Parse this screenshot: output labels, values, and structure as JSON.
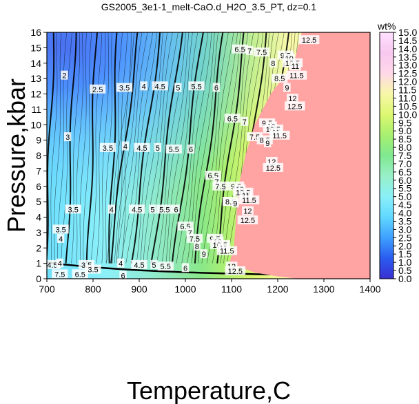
{
  "chart_data": {
    "type": "heatmap",
    "title": "GS2005_3e1-1_melt-CaO.d_H2O_3.5_PT, dz=0.1",
    "xlabel": "Temperature,C",
    "ylabel": "Pressure,kbar",
    "xlim": [
      700,
      1400
    ],
    "ylim": [
      0,
      16
    ],
    "x_ticks": [
      "700",
      "800",
      "900",
      "1000",
      "1100",
      "1200",
      "1300",
      "1400"
    ],
    "y_ticks": [
      "0",
      "1",
      "2",
      "3",
      "4",
      "5",
      "6",
      "7",
      "8",
      "9",
      "10",
      "11",
      "12",
      "13",
      "14",
      "15",
      "16"
    ],
    "colorbar": {
      "label": "wt%",
      "range": [
        0.0,
        15.0
      ],
      "ticks": [
        "0.0",
        "0.5",
        "1.0",
        "1.5",
        "2.0",
        "2.5",
        "3.0",
        "3.5",
        "4.0",
        "4.5",
        "5.0",
        "5.5",
        "6.0",
        "6.5",
        "7.0",
        "7.5",
        "8.0",
        "8.5",
        "9.0",
        "9.5",
        "10.0",
        "10.5",
        "11.0",
        "11.5",
        "12.0",
        "12.5",
        "13.0",
        "13.5",
        "14.0",
        "14.5",
        "15.0"
      ],
      "colors": [
        "#3a2fd0",
        "#2a5cf0",
        "#3fa0ff",
        "#60d8ff",
        "#8af0f8",
        "#98f0c8",
        "#80e890",
        "#a8f070",
        "#dcf870",
        "#f8f8a8",
        "#ffd8e8",
        "#f8c8f0",
        "#ffe0ff"
      ]
    },
    "subsolidus_region": {
      "color": "#ffa3a3",
      "boundary": [
        [
          1252,
          16
        ],
        [
          1235,
          14
        ],
        [
          1185,
          12
        ],
        [
          1150,
          10
        ],
        [
          1130,
          8
        ],
        [
          1115,
          6
        ],
        [
          1110,
          4
        ],
        [
          1105,
          2
        ],
        [
          1095,
          1
        ],
        [
          1150,
          0.4
        ],
        [
          1200,
          0.15
        ],
        [
          1245,
          0
        ],
        [
          1400,
          0
        ],
        [
          1400,
          16
        ]
      ]
    },
    "contour_labels": [
      {
        "text": "2",
        "t": 738,
        "p": 13.2
      },
      {
        "text": "2.5",
        "t": 810,
        "p": 12.3
      },
      {
        "text": "3",
        "t": 745,
        "p": 9.2
      },
      {
        "text": "3.5",
        "t": 868,
        "p": 12.4
      },
      {
        "text": "3.5",
        "t": 832,
        "p": 8.5
      },
      {
        "text": "3.5",
        "t": 757,
        "p": 4.5
      },
      {
        "text": "3.5",
        "t": 730,
        "p": 3.2
      },
      {
        "text": "3.5",
        "t": 786,
        "p": 0.9
      },
      {
        "text": "4",
        "t": 910,
        "p": 12.5
      },
      {
        "text": "4",
        "t": 870,
        "p": 8.6
      },
      {
        "text": "4",
        "t": 840,
        "p": 4.5
      },
      {
        "text": "4",
        "t": 730,
        "p": 2.6
      },
      {
        "text": "4",
        "t": 860,
        "p": 1.0
      },
      {
        "text": "4.5",
        "t": 945,
        "p": 12.5
      },
      {
        "text": "4.5",
        "t": 906,
        "p": 8.5
      },
      {
        "text": "4.5",
        "t": 895,
        "p": 4.5
      },
      {
        "text": "4.5",
        "t": 900,
        "p": 0.9
      },
      {
        "text": "5",
        "t": 984,
        "p": 12.4
      },
      {
        "text": "5",
        "t": 940,
        "p": 8.5
      },
      {
        "text": "5",
        "t": 929,
        "p": 4.5
      },
      {
        "text": "5",
        "t": 932,
        "p": 0.9
      },
      {
        "text": "5.5",
        "t": 1024,
        "p": 12.5
      },
      {
        "text": "5.5",
        "t": 975,
        "p": 8.4
      },
      {
        "text": "5.5",
        "t": 955,
        "p": 4.5
      },
      {
        "text": "5.5",
        "t": 957,
        "p": 0.8
      },
      {
        "text": "6",
        "t": 1067,
        "p": 12.4
      },
      {
        "text": "6",
        "t": 1012,
        "p": 8.4
      },
      {
        "text": "6",
        "t": 980,
        "p": 4.5
      },
      {
        "text": "6",
        "t": 1000,
        "p": 0.7
      },
      {
        "text": "6.5",
        "t": 1118,
        "p": 14.9
      },
      {
        "text": "6.5",
        "t": 1102,
        "p": 10.4
      },
      {
        "text": "6.5",
        "t": 1060,
        "p": 6.7
      },
      {
        "text": "6.5",
        "t": 1000,
        "p": 3.4
      },
      {
        "text": "7",
        "t": 1139,
        "p": 14.8
      },
      {
        "text": "7",
        "t": 1128,
        "p": 10.2
      },
      {
        "text": "7",
        "t": 1068,
        "p": 6.3
      },
      {
        "text": "7",
        "t": 1010,
        "p": 3.0
      },
      {
        "text": "7.5",
        "t": 1165,
        "p": 14.7
      },
      {
        "text": "7.5",
        "t": 1150,
        "p": 9.2
      },
      {
        "text": "7.5",
        "t": 1076,
        "p": 6.0
      },
      {
        "text": "7.5",
        "t": 1020,
        "p": 2.6
      },
      {
        "text": "8",
        "t": 1190,
        "p": 14.0
      },
      {
        "text": "8",
        "t": 1090,
        "p": 5.0
      },
      {
        "text": "8",
        "t": 1025,
        "p": 2.1
      },
      {
        "text": "8.5",
        "t": 1204,
        "p": 13.0
      },
      {
        "text": "8.5",
        "t": 1172,
        "p": 9.0
      },
      {
        "text": "8.5",
        "t": 1098,
        "p": 5.0
      },
      {
        "text": "9",
        "t": 1220,
        "p": 12.4
      },
      {
        "text": "9",
        "t": 1178,
        "p": 8.8
      },
      {
        "text": "9",
        "t": 1108,
        "p": 4.9
      },
      {
        "text": "9",
        "t": 1040,
        "p": 1.6
      },
      {
        "text": "9.5",
        "t": 1217,
        "p": 14.5
      },
      {
        "text": "9.5",
        "t": 1177,
        "p": 10.1
      },
      {
        "text": "9.5",
        "t": 1110,
        "p": 6.0
      },
      {
        "text": "9.5",
        "t": 1064,
        "p": 2.6
      },
      {
        "text": "10",
        "t": 1225,
        "p": 14.3
      },
      {
        "text": "10",
        "t": 1186,
        "p": 9.9
      },
      {
        "text": "10",
        "t": 1118,
        "p": 5.8
      },
      {
        "text": "10",
        "t": 1070,
        "p": 2.4
      },
      {
        "text": "10.5",
        "t": 1232,
        "p": 14.0
      },
      {
        "text": "10.5",
        "t": 1190,
        "p": 9.7
      },
      {
        "text": "10.5",
        "t": 1125,
        "p": 5.6
      },
      {
        "text": "10.5",
        "t": 1075,
        "p": 2.2
      },
      {
        "text": "11",
        "t": 1238,
        "p": 13.8
      },
      {
        "text": "11",
        "t": 1196,
        "p": 9.5
      },
      {
        "text": "11",
        "t": 1131,
        "p": 5.4
      },
      {
        "text": "11",
        "t": 1082,
        "p": 2.0
      },
      {
        "text": "11.5",
        "t": 1241,
        "p": 13.2
      },
      {
        "text": "11.5",
        "t": 1204,
        "p": 9.3
      },
      {
        "text": "11.5",
        "t": 1138,
        "p": 5.1
      },
      {
        "text": "11.5",
        "t": 1090,
        "p": 1.8
      },
      {
        "text": "12",
        "t": 1232,
        "p": 11.7
      },
      {
        "text": "12",
        "t": 1187,
        "p": 7.6
      },
      {
        "text": "12",
        "t": 1135,
        "p": 4.4
      },
      {
        "text": "12",
        "t": 1100,
        "p": 0.8
      },
      {
        "text": "12.5",
        "t": 1268,
        "p": 15.5
      },
      {
        "text": "12.5",
        "t": 1237,
        "p": 11.2
      },
      {
        "text": "12.5",
        "t": 1190,
        "p": 7.2
      },
      {
        "text": "12.5",
        "t": 1135,
        "p": 3.8
      },
      {
        "text": "12.5",
        "t": 1108,
        "p": 0.5
      },
      {
        "text": "4.5",
        "t": 712,
        "p": 0.9
      },
      {
        "text": "4",
        "t": 728,
        "p": 1.0
      },
      {
        "text": "3.5",
        "t": 800,
        "p": 0.6
      },
      {
        "text": "6",
        "t": 865,
        "p": 0.2
      },
      {
        "text": "7.5",
        "t": 728,
        "p": 0.3
      },
      {
        "text": "6.5",
        "t": 772,
        "p": 0.3
      }
    ]
  }
}
